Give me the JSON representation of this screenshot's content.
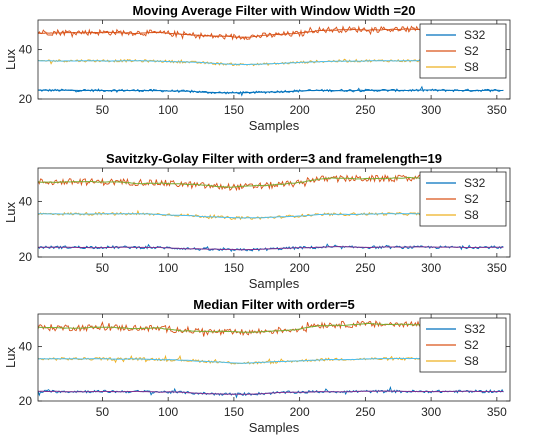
{
  "chart_data": [
    {
      "type": "line",
      "title": "Moving Average Filter with Window Width =20",
      "xlabel": "Samples",
      "ylabel": "Lux",
      "xlim": [
        1,
        360
      ],
      "ylim": [
        20,
        52
      ],
      "xticks": [
        50,
        100,
        150,
        200,
        250,
        300,
        350
      ],
      "yticks": [
        20,
        40
      ],
      "legend_position": "top-right",
      "grid": false,
      "series": [
        {
          "name": "S32",
          "color": "#0072BD",
          "baseline": 23.5,
          "smooth_color": "#0072BD"
        },
        {
          "name": "S2",
          "color": "#D95319",
          "baseline": 47.0,
          "smooth_color": "#D95319"
        },
        {
          "name": "S8",
          "color": "#EDB120",
          "baseline": 35.5,
          "smooth_color": "#4DBEEE"
        }
      ]
    },
    {
      "type": "line",
      "title": "Savitzky-Golay Filter with order=3 and framelength=19",
      "xlabel": "Samples",
      "ylabel": "Lux",
      "xlim": [
        1,
        360
      ],
      "ylim": [
        20,
        52
      ],
      "xticks": [
        50,
        100,
        150,
        200,
        250,
        300,
        350
      ],
      "yticks": [
        20,
        40
      ],
      "legend_position": "top-right",
      "grid": false,
      "series": [
        {
          "name": "S32",
          "color": "#0072BD",
          "baseline": 23.5,
          "smooth_color": "#7E2F8E"
        },
        {
          "name": "S2",
          "color": "#D95319",
          "baseline": 47.0,
          "smooth_color": "#77AC30"
        },
        {
          "name": "S8",
          "color": "#EDB120",
          "baseline": 35.5,
          "smooth_color": "#4DBEEE"
        }
      ]
    },
    {
      "type": "line",
      "title": "Median Filter with order=5",
      "xlabel": "Samples",
      "ylabel": "Lux",
      "xlim": [
        1,
        360
      ],
      "ylim": [
        20,
        52
      ],
      "xticks": [
        50,
        100,
        150,
        200,
        250,
        300,
        350
      ],
      "yticks": [
        20,
        40
      ],
      "legend_position": "top-right",
      "grid": false,
      "series": [
        {
          "name": "S32",
          "color": "#0072BD",
          "baseline": 23.5,
          "smooth_color": "#7E2F8E"
        },
        {
          "name": "S2",
          "color": "#D95319",
          "baseline": 47.0,
          "smooth_color": "#77AC30"
        },
        {
          "name": "S8",
          "color": "#EDB120",
          "baseline": 35.5,
          "smooth_color": "#4DBEEE"
        }
      ]
    }
  ]
}
